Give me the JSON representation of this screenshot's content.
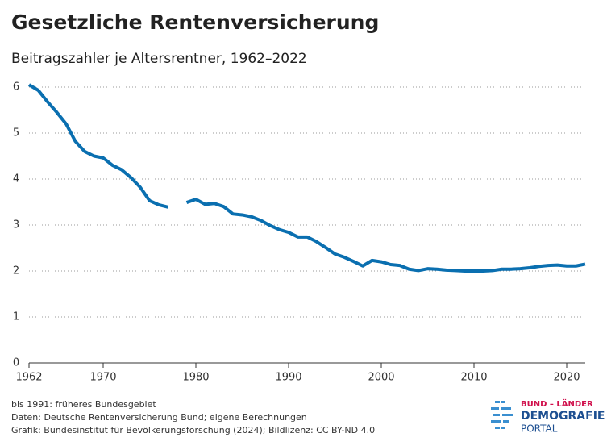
{
  "chart_data": {
    "type": "line",
    "title": "Gesetzliche Rentenversicherung",
    "subtitle": "Beitragszahler je Altersrentner, 1962–2022",
    "x": [
      1962,
      1963,
      1964,
      1965,
      1966,
      1967,
      1968,
      1969,
      1970,
      1971,
      1972,
      1973,
      1974,
      1975,
      1976,
      1977,
      1978,
      1979,
      1980,
      1981,
      1982,
      1983,
      1984,
      1985,
      1986,
      1987,
      1988,
      1989,
      1990,
      1991,
      1992,
      1993,
      1994,
      1995,
      1996,
      1997,
      1998,
      1999,
      2000,
      2001,
      2002,
      2003,
      2004,
      2005,
      2006,
      2007,
      2008,
      2009,
      2010,
      2011,
      2012,
      2013,
      2014,
      2015,
      2016,
      2017,
      2018,
      2019,
      2020,
      2021,
      2022
    ],
    "series": [
      {
        "name": "Beitragszahler je Altersrentner",
        "color": "#0a6fb0",
        "values": [
          6.05,
          5.93,
          5.68,
          5.45,
          5.2,
          4.82,
          4.6,
          4.5,
          4.46,
          4.3,
          4.2,
          4.03,
          3.82,
          3.53,
          3.44,
          3.39,
          null,
          3.49,
          3.56,
          3.45,
          3.47,
          3.4,
          3.24,
          3.22,
          3.18,
          3.1,
          2.99,
          2.9,
          2.84,
          2.74,
          2.74,
          2.64,
          2.51,
          2.37,
          2.3,
          2.21,
          2.11,
          2.23,
          2.2,
          2.14,
          2.12,
          2.04,
          2.01,
          2.05,
          2.04,
          2.02,
          2.01,
          2.0,
          2.0,
          2.0,
          2.01,
          2.04,
          2.04,
          2.05,
          2.07,
          2.1,
          2.12,
          2.13,
          2.11,
          2.11,
          2.15
        ]
      }
    ],
    "xlim": [
      1962,
      2022
    ],
    "xticks": [
      1962,
      1970,
      1980,
      1990,
      2000,
      2010,
      2020
    ],
    "ylim": [
      0,
      6
    ],
    "yticks": [
      0,
      1,
      2,
      3,
      4,
      5,
      6
    ],
    "grid": true,
    "notes": [
      "bis 1991: früheres Bundesgebiet",
      "Daten: Deutsche Rentenversicherung Bund; eigene Berechnungen",
      "Grafik: Bundesinstitut für Bevölkerungsforschung (2024); Bildlizenz: CC BY-ND 4.0"
    ]
  },
  "logo": {
    "line1": "BUND – LÄNDER",
    "line2": "DEMOGRAFIE",
    "line3": "PORTAL"
  }
}
